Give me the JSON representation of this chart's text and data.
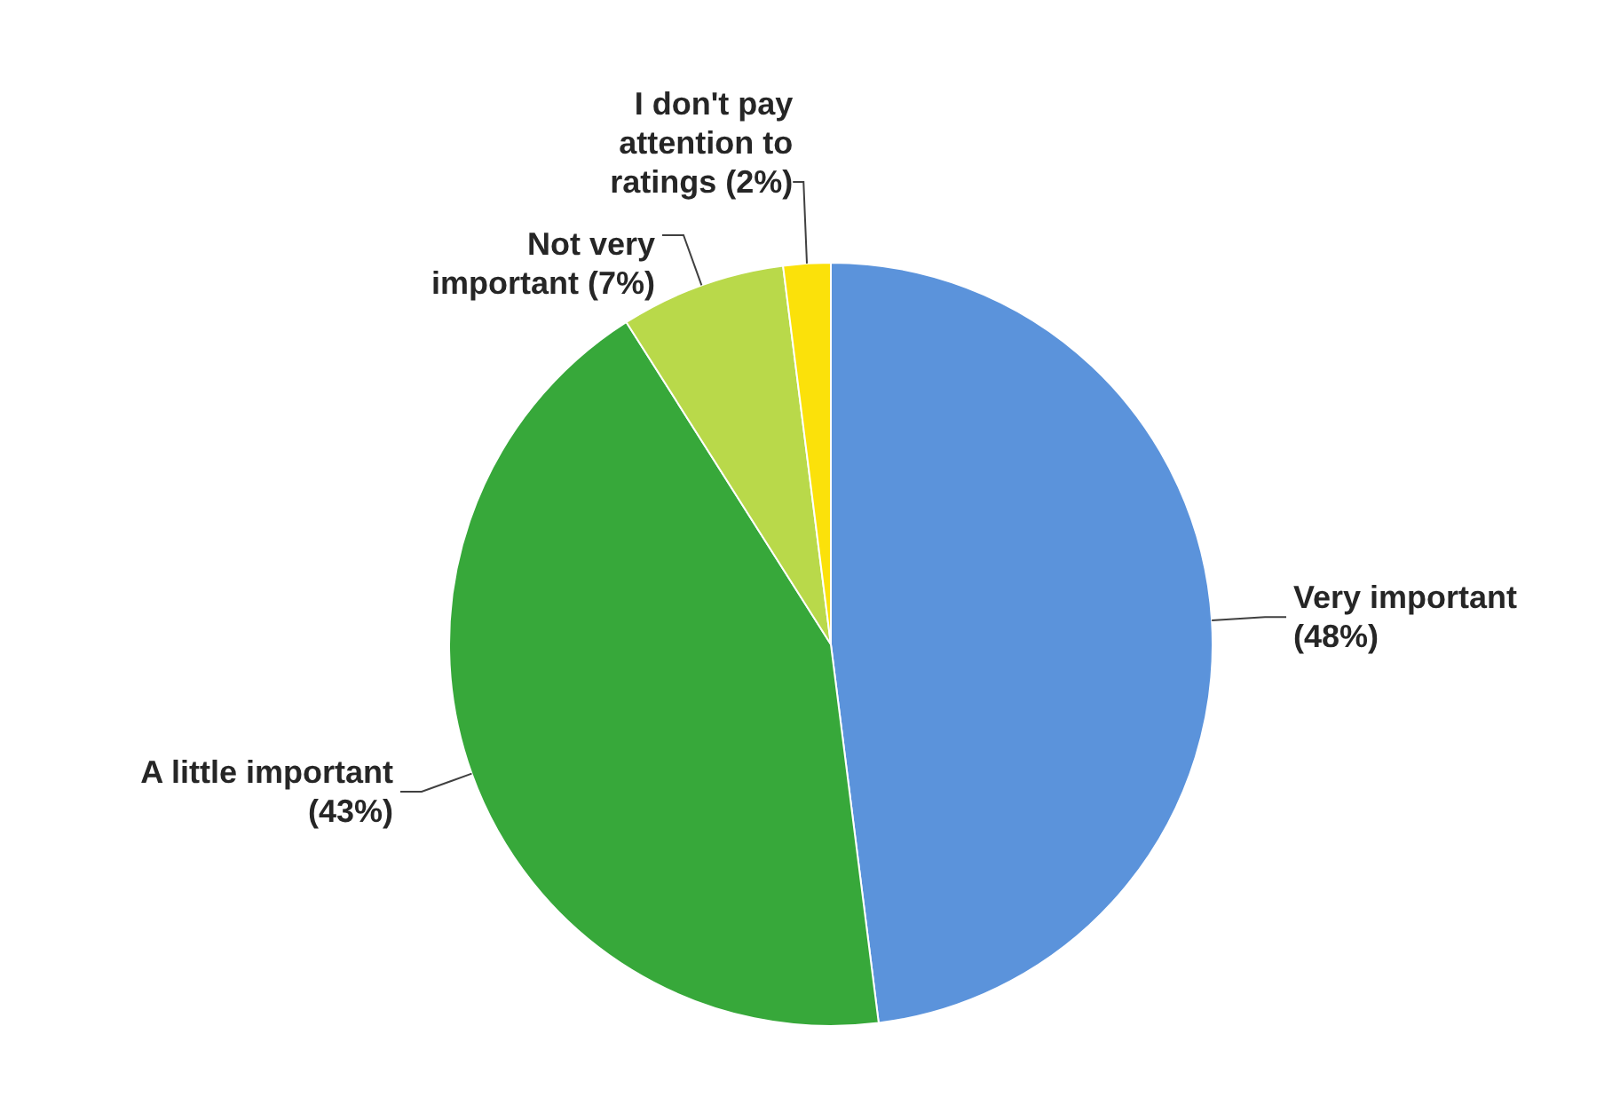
{
  "chart_data": {
    "type": "pie",
    "categories": [
      "Very important",
      "A little important",
      "Not very important",
      "I don't pay attention to ratings"
    ],
    "values": [
      48,
      43,
      7,
      2
    ],
    "value_labels": [
      "(48%)",
      "(43%)",
      "(7%)",
      "(2%)"
    ],
    "colors": [
      "#5b93db",
      "#37a83a",
      "#b9d94a",
      "#fbe10a"
    ],
    "legend": false
  }
}
